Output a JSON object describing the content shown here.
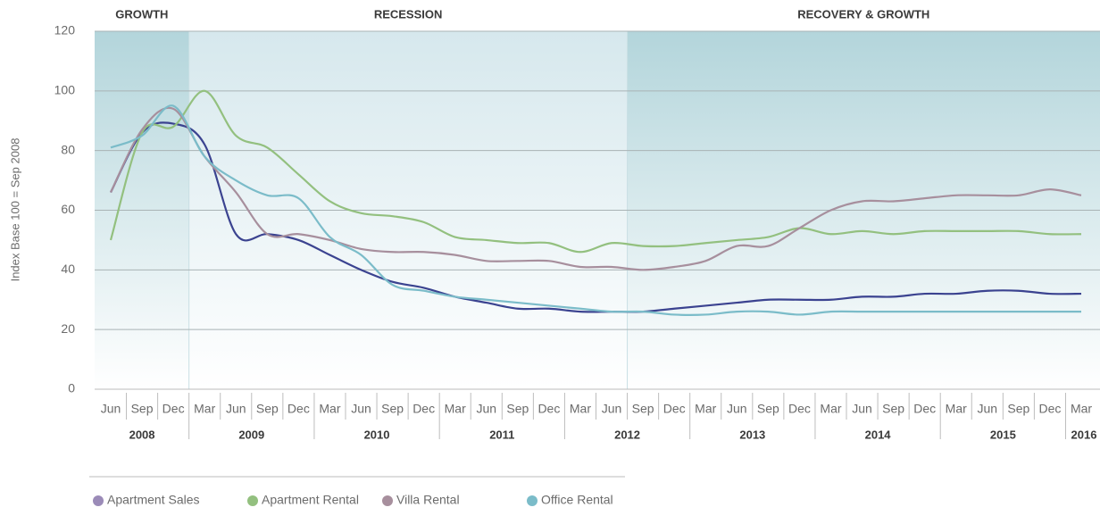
{
  "chart_data": {
    "type": "line",
    "y_label": "Index Base 100 = Sep 2008",
    "phases": [
      "GROWTH",
      "RECESSION",
      "RECOVERY & GROWTH"
    ],
    "categories": [
      "Jun",
      "Sep",
      "Dec",
      "Mar",
      "Jun",
      "Sep",
      "Dec",
      "Mar",
      "Jun",
      "Sep",
      "Dec",
      "Mar",
      "Jun",
      "Sep",
      "Dec",
      "Mar",
      "Jun",
      "Sep",
      "Dec",
      "Mar",
      "Jun",
      "Sep",
      "Dec",
      "Mar",
      "Jun",
      "Sep",
      "Dec",
      "Mar",
      "Jun",
      "Sep",
      "Dec",
      "Mar"
    ],
    "years": [
      "2008",
      "2009",
      "2010",
      "2011",
      "2012",
      "2013",
      "2014",
      "2015",
      "2016"
    ],
    "ylim": [
      0,
      120
    ],
    "yticks": [
      0,
      20,
      40,
      60,
      80,
      100,
      120
    ],
    "grid": true,
    "series": [
      {
        "name": "Apartment Sales",
        "color": "#3b4390",
        "legend_color": "#9b8bb8",
        "values": [
          66,
          86,
          89,
          82,
          52,
          52,
          50,
          45,
          40,
          36,
          34,
          31,
          29,
          27,
          27,
          26,
          26,
          26,
          27,
          28,
          29,
          30,
          30,
          30,
          31,
          31,
          32,
          32,
          33,
          33,
          32,
          32
        ]
      },
      {
        "name": "Apartment Rental",
        "color": "#93c07f",
        "legend_color": "#93c07f",
        "values": [
          50,
          86,
          88,
          100,
          85,
          81,
          72,
          63,
          59,
          58,
          56,
          51,
          50,
          49,
          49,
          46,
          49,
          48,
          48,
          49,
          50,
          51,
          54,
          52,
          53,
          52,
          53,
          53,
          53,
          53,
          52,
          52
        ]
      },
      {
        "name": "Villa Rental",
        "color": "#a78f9d",
        "legend_color": "#a78f9d",
        "values": [
          66,
          87,
          94,
          78,
          66,
          52,
          52,
          50,
          47,
          46,
          46,
          45,
          43,
          43,
          43,
          41,
          41,
          40,
          41,
          43,
          48,
          48,
          54,
          60,
          63,
          63,
          64,
          65,
          65,
          65,
          67,
          65
        ]
      },
      {
        "name": "Office Rental",
        "color": "#7bbcc9",
        "legend_color": "#7bbcc9",
        "values": [
          81,
          85,
          95,
          78,
          70,
          65,
          64,
          51,
          45,
          35,
          33,
          31,
          30,
          29,
          28,
          27,
          26,
          26,
          25,
          25,
          26,
          26,
          25,
          26,
          26,
          26,
          26,
          26,
          26,
          26,
          26,
          26
        ]
      }
    ]
  }
}
